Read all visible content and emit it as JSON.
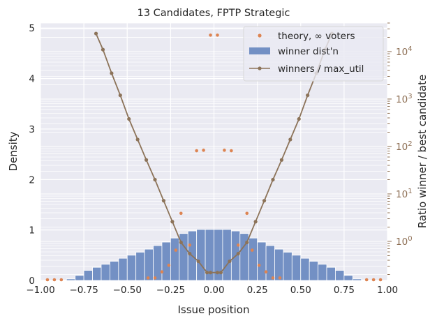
{
  "chart_data": {
    "type": "bar",
    "title": "13 Candidates, FPTP Strategic",
    "xlabel": "Issue position",
    "ylabel": "Density",
    "y2label": "Ratio winner / best candidate",
    "xlim": [
      -1.0,
      1.0
    ],
    "ylim": [
      0,
      5.1
    ],
    "y2scale": "log",
    "y2lim": [
      0.15,
      40000
    ],
    "grid": true,
    "legend_placement": "top-right",
    "x_ticks": [
      {
        "v": -1.0,
        "label": "−1.00"
      },
      {
        "v": -0.75,
        "label": "−0.75"
      },
      {
        "v": -0.5,
        "label": "−0.50"
      },
      {
        "v": -0.25,
        "label": "−0.25"
      },
      {
        "v": 0.0,
        "label": "0.00"
      },
      {
        "v": 0.25,
        "label": "0.25"
      },
      {
        "v": 0.5,
        "label": "0.50"
      },
      {
        "v": 0.75,
        "label": "0.75"
      },
      {
        "v": 1.0,
        "label": "1.00"
      }
    ],
    "y_ticks": [
      {
        "v": 0,
        "label": "0"
      },
      {
        "v": 1,
        "label": "1"
      },
      {
        "v": 2,
        "label": "2"
      },
      {
        "v": 3,
        "label": "3"
      },
      {
        "v": 4,
        "label": "4"
      },
      {
        "v": 5,
        "label": "5"
      }
    ],
    "y2_ticks": [
      {
        "v": 1,
        "base": "10",
        "exp": "0"
      },
      {
        "v": 10,
        "base": "10",
        "exp": "1"
      },
      {
        "v": 100,
        "base": "10",
        "exp": "2"
      },
      {
        "v": 1000,
        "base": "10",
        "exp": "3"
      },
      {
        "v": 10000,
        "base": "10",
        "exp": "4"
      }
    ],
    "series": [
      {
        "name": "winner dist'n",
        "kind": "histogram",
        "color": "#7390c4",
        "bin_width": 0.05,
        "bin_starts": [
          -1.0,
          -0.95,
          -0.9,
          -0.85,
          -0.8,
          -0.75,
          -0.7,
          -0.65,
          -0.6,
          -0.55,
          -0.5,
          -0.45,
          -0.4,
          -0.35,
          -0.3,
          -0.25,
          -0.2,
          -0.15,
          -0.1,
          -0.05,
          0.0,
          0.05,
          0.1,
          0.15,
          0.2,
          0.25,
          0.3,
          0.35,
          0.4,
          0.45,
          0.5,
          0.55,
          0.6,
          0.65,
          0.7,
          0.75,
          0.8,
          0.85,
          0.9,
          0.95
        ],
        "values": [
          0.0,
          0.0,
          0.01,
          0.03,
          0.1,
          0.2,
          0.26,
          0.32,
          0.38,
          0.44,
          0.5,
          0.56,
          0.62,
          0.69,
          0.76,
          0.84,
          0.93,
          0.98,
          1.01,
          1.01,
          1.01,
          1.01,
          0.98,
          0.93,
          0.84,
          0.76,
          0.69,
          0.62,
          0.56,
          0.5,
          0.44,
          0.38,
          0.32,
          0.26,
          0.2,
          0.1,
          0.03,
          0.01,
          0.0,
          0.0
        ]
      },
      {
        "name": "theory, ∞ voters",
        "kind": "scatter",
        "axis": "left",
        "color": "#dd8452",
        "x": [
          -0.96,
          -0.92,
          -0.88,
          -0.38,
          -0.34,
          -0.3,
          -0.26,
          -0.22,
          -0.19,
          -0.14,
          -0.1,
          -0.06,
          -0.02,
          0.02,
          0.06,
          0.1,
          0.14,
          0.19,
          0.22,
          0.26,
          0.3,
          0.34,
          0.38,
          0.88,
          0.92,
          0.96
        ],
        "y": [
          0.0,
          0.0,
          0.0,
          0.05,
          0.05,
          0.17,
          0.3,
          0.6,
          1.33,
          0.7,
          2.57,
          2.58,
          4.86,
          4.86,
          2.58,
          2.57,
          0.7,
          1.33,
          0.6,
          0.3,
          0.17,
          0.05,
          0.05,
          0.0,
          0.0,
          0.0
        ]
      },
      {
        "name": "winners / max_util",
        "kind": "line",
        "axis": "right",
        "color": "#8c7359",
        "x": [
          -0.68,
          -0.64,
          -0.59,
          -0.54,
          -0.49,
          -0.44,
          -0.39,
          -0.34,
          -0.29,
          -0.24,
          -0.19,
          -0.14,
          -0.09,
          -0.04,
          -0.02,
          0.02,
          0.04,
          0.09,
          0.14,
          0.19,
          0.24,
          0.29,
          0.34,
          0.39,
          0.44,
          0.49,
          0.54,
          0.59,
          0.64,
          0.68
        ],
        "y": [
          24000,
          11000,
          3500,
          1200,
          380,
          140,
          52,
          20,
          7.2,
          2.6,
          0.95,
          0.55,
          0.38,
          0.22,
          0.22,
          0.22,
          0.22,
          0.38,
          0.55,
          0.95,
          2.6,
          7.2,
          20,
          52,
          140,
          380,
          1200,
          3500,
          11000,
          24000
        ]
      }
    ]
  }
}
